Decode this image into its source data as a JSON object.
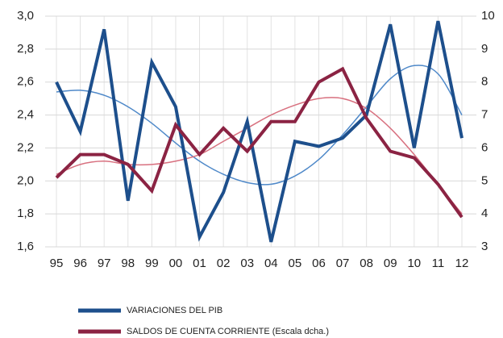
{
  "chart_data": {
    "type": "line",
    "categories": [
      "95",
      "96",
      "97",
      "98",
      "99",
      "00",
      "01",
      "02",
      "03",
      "04",
      "05",
      "06",
      "07",
      "08",
      "09",
      "10",
      "11",
      "12"
    ],
    "series": [
      {
        "name": "VARIACIONES DEL PIB",
        "color": "#1d4f8c",
        "axis": "y",
        "values": [
          2.6,
          2.3,
          2.92,
          1.88,
          2.72,
          2.45,
          1.66,
          1.93,
          2.36,
          1.63,
          2.24,
          2.21,
          2.26,
          2.4,
          2.95,
          2.2,
          2.97,
          2.26
        ]
      },
      {
        "name": "SALDOS DE CUENTA CORRIENTE (Escala dcha.)",
        "color": "#8b2343",
        "axis": "y2",
        "values": [
          5.1,
          5.8,
          5.8,
          5.5,
          4.7,
          6.7,
          5.8,
          6.6,
          5.9,
          6.8,
          6.8,
          8.0,
          8.4,
          6.9,
          5.9,
          5.7,
          4.9,
          3.9
        ]
      },
      {
        "color": "#4f89c9",
        "axis": "y",
        "smooth": true,
        "values": [
          2.54,
          2.55,
          2.52,
          2.45,
          2.35,
          2.23,
          2.12,
          2.04,
          1.99,
          1.98,
          2.03,
          2.13,
          2.28,
          2.45,
          2.62,
          2.7,
          2.65,
          2.4
        ]
      },
      {
        "color": "#d8707f",
        "axis": "y2",
        "smooth": true,
        "values": [
          5.2,
          5.5,
          5.6,
          5.5,
          5.5,
          5.6,
          5.8,
          6.2,
          6.6,
          7.0,
          7.3,
          7.5,
          7.5,
          7.2,
          6.6,
          5.8,
          4.9,
          4.0
        ]
      }
    ],
    "ylim": [
      1.6,
      3.0
    ],
    "yticks": [
      {
        "value": 1.6,
        "label": "1,6"
      },
      {
        "value": 1.8,
        "label": "1,8"
      },
      {
        "value": 2.0,
        "label": "2,0"
      },
      {
        "value": 2.2,
        "label": "2,2"
      },
      {
        "value": 2.4,
        "label": "2,4"
      },
      {
        "value": 2.6,
        "label": "2,6"
      },
      {
        "value": 2.8,
        "label": "2,8"
      },
      {
        "value": 3.0,
        "label": "3,0"
      }
    ],
    "y2lim": [
      3,
      10
    ],
    "y2ticks": [
      3,
      4,
      5,
      6,
      7,
      8,
      9,
      10
    ],
    "grid": true
  }
}
